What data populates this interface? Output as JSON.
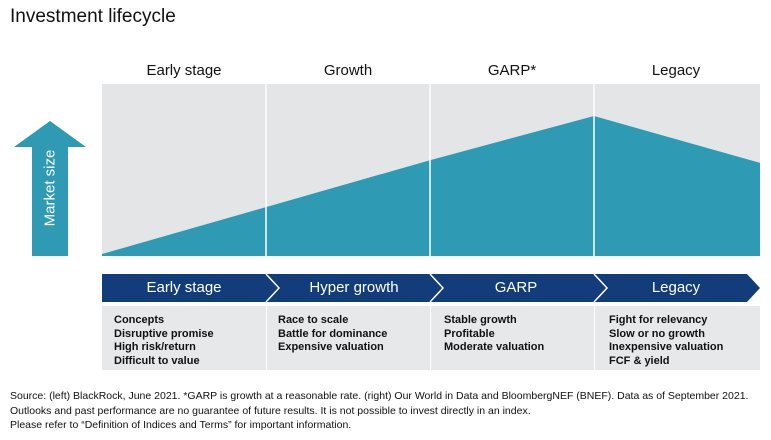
{
  "title": "Investment lifecycle",
  "colors": {
    "teal": "#2e9ab3",
    "navy": "#123d7a",
    "panel": "#e4e5e7",
    "divider": "#ffffff"
  },
  "axis": {
    "label": "Market size",
    "arrow_icon": "up-arrow-icon"
  },
  "stages": [
    {
      "header": "Early stage",
      "chevron": "Early stage",
      "bullets": [
        "Concepts",
        "Disruptive promise",
        "High risk/return",
        "Difficult to value"
      ]
    },
    {
      "header": "Growth",
      "chevron": "Hyper growth",
      "bullets": [
        "Race to scale",
        "Battle for dominance",
        "Expensive valuation"
      ]
    },
    {
      "header": "GARP*",
      "chevron": "GARP",
      "bullets": [
        "Stable growth",
        "Profitable",
        "Moderate valuation"
      ]
    },
    {
      "header": "Legacy",
      "chevron": "Legacy",
      "bullets": [
        "Fight for relevancy",
        "Slow or no growth",
        "Inexpensive valuation",
        "FCF & yield"
      ]
    }
  ],
  "curve": {
    "description": "relative market size across lifecycle (0 = start, 1 = peak)",
    "points": [
      0.0,
      0.34,
      0.68,
      1.0,
      0.66
    ]
  },
  "footer": [
    "Source: (left) BlackRock, June 2021. *GARP is growth at a reasonable rate. (right) Our World in Data and BloombergNEF (BNEF). Data as of September 2021.",
    "Outlooks and past performance are no guarantee of future results. It is not possible to invest directly in an index.",
    "Please refer to “Definition of Indices and Terms” for important information."
  ]
}
